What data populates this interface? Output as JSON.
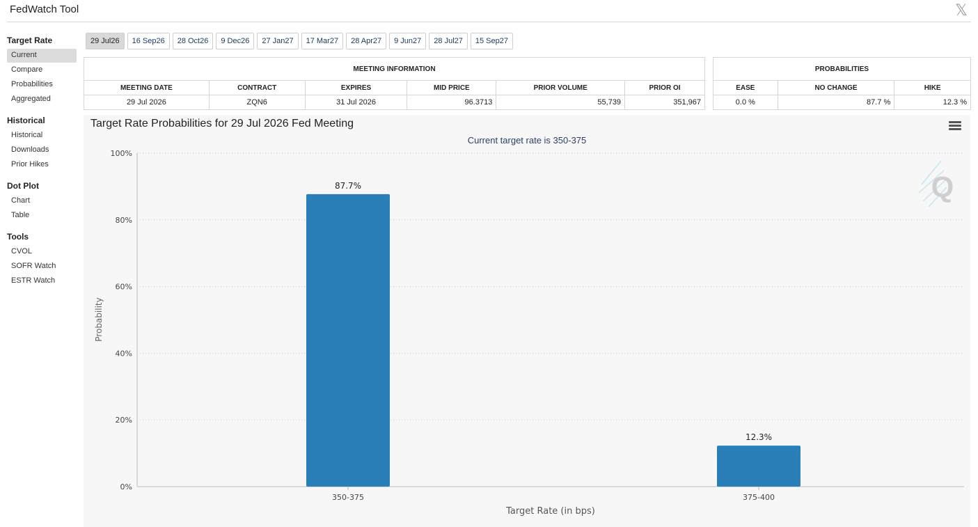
{
  "app": {
    "title": "FedWatch Tool",
    "close_icon": "x-close-icon"
  },
  "sidebar": {
    "sections": [
      {
        "header": "Target Rate",
        "items": [
          "Current",
          "Compare",
          "Probabilities",
          "Aggregated"
        ],
        "active": "Current"
      },
      {
        "header": "Historical",
        "items": [
          "Historical",
          "Downloads",
          "Prior Hikes"
        ]
      },
      {
        "header": "Dot Plot",
        "items": [
          "Chart",
          "Table"
        ]
      },
      {
        "header": "Tools",
        "items": [
          "CVOL",
          "SOFR Watch",
          "ESTR Watch"
        ]
      }
    ]
  },
  "tabs": {
    "items": [
      "29 Jul26",
      "16 Sep26",
      "28 Oct26",
      "9 Dec26",
      "27 Jan27",
      "17 Mar27",
      "28 Apr27",
      "9 Jun27",
      "28 Jul27",
      "15 Sep27"
    ],
    "active": "29 Jul26"
  },
  "meeting_info": {
    "heading": "MEETING INFORMATION",
    "columns": [
      "MEETING DATE",
      "CONTRACT",
      "EXPIRES",
      "MID PRICE",
      "PRIOR VOLUME",
      "PRIOR OI"
    ],
    "row": [
      "29 Jul 2026",
      "ZQN6",
      "31 Jul 2026",
      "96.3713",
      "55,739",
      "351,967"
    ]
  },
  "probabilities": {
    "heading": "PROBABILITIES",
    "columns": [
      "EASE",
      "NO CHANGE",
      "HIKE"
    ],
    "row": [
      "0.0 %",
      "87.7 %",
      "12.3 %"
    ]
  },
  "chart": {
    "title": "Target Rate Probabilities for 29 Jul 2026 Fed Meeting",
    "subtitle": "Current target rate is 350-375",
    "menu_icon": "hamburger-menu-icon",
    "watermark": "Q",
    "bar_color": "#2a7fb8"
  },
  "chart_data": {
    "type": "bar",
    "title": "Target Rate Probabilities for 29 Jul 2026 Fed Meeting",
    "subtitle": "Current target rate is 350-375",
    "categories": [
      "350-375",
      "375-400"
    ],
    "values": [
      87.7,
      12.3
    ],
    "data_labels": [
      "87.7%",
      "12.3%"
    ],
    "xlabel": "Target Rate (in bps)",
    "ylabel": "Probability",
    "ylim": [
      0,
      100
    ],
    "yticks": [
      "0%",
      "20%",
      "40%",
      "60%",
      "80%",
      "100%"
    ],
    "grid": true
  }
}
